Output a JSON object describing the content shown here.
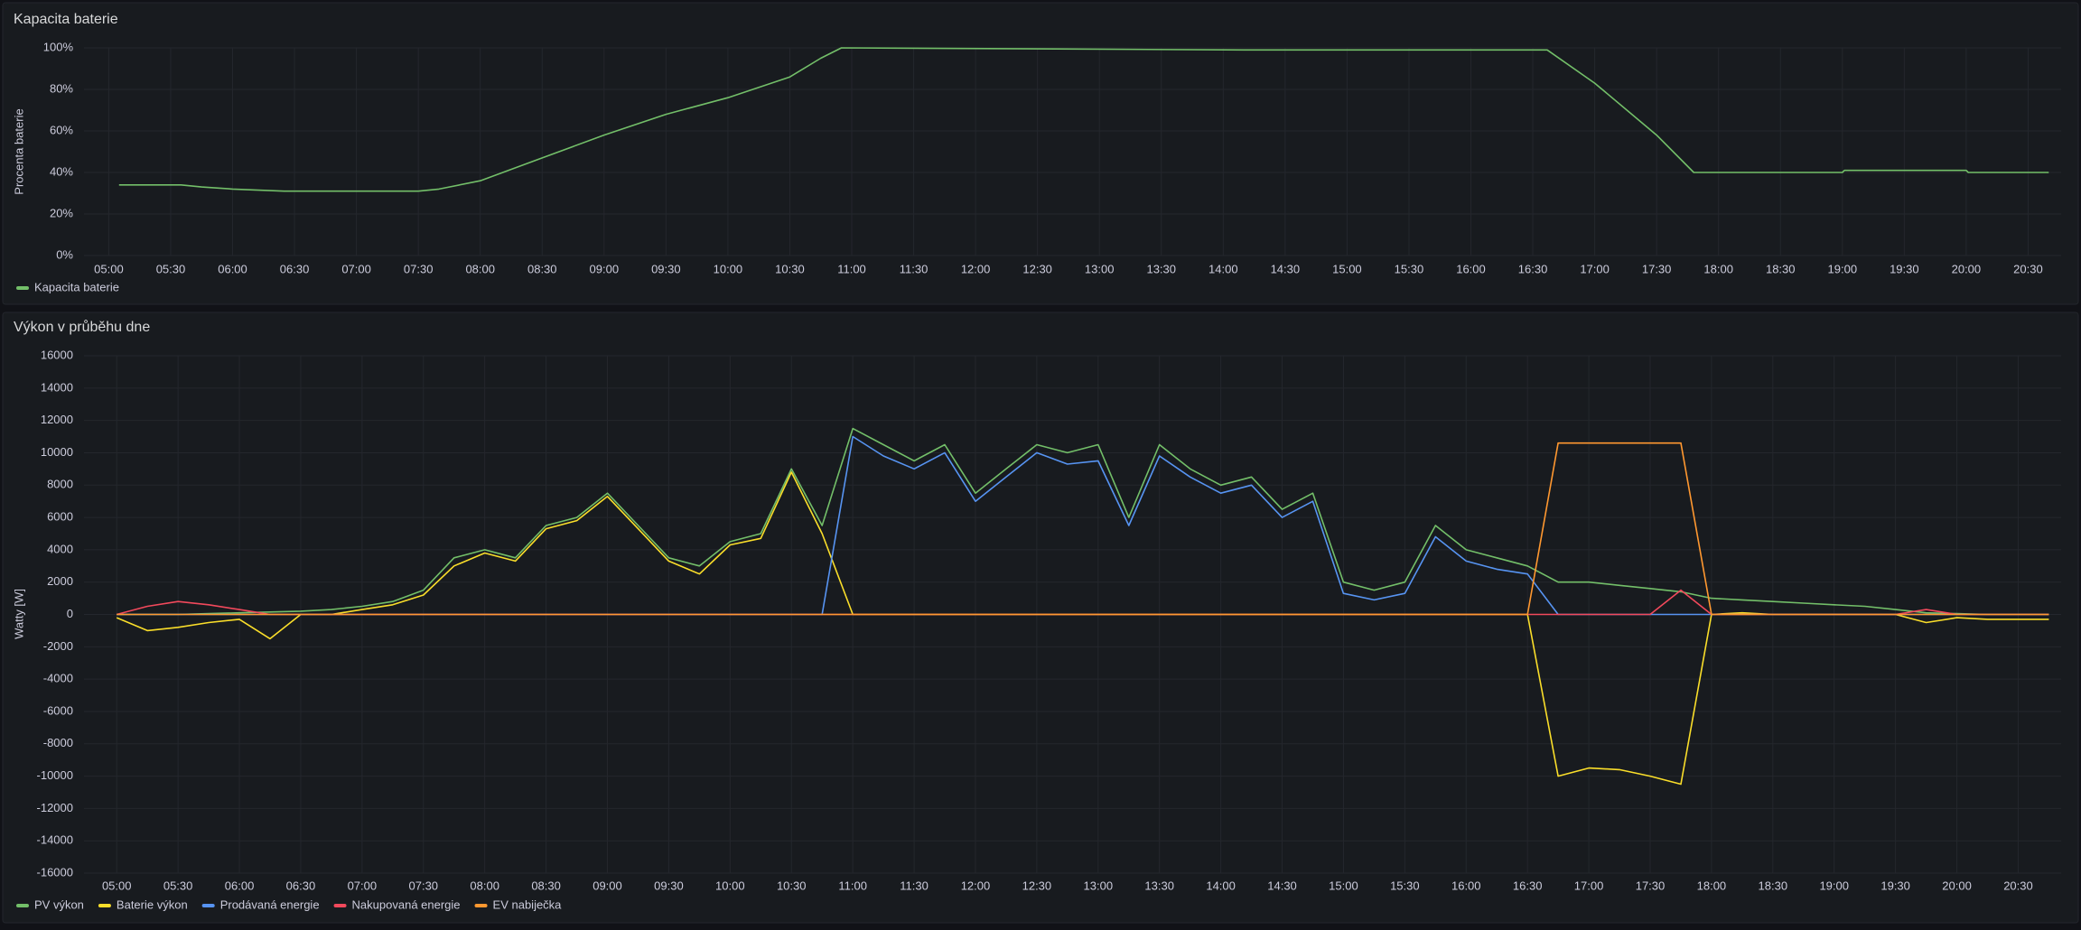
{
  "chart_data": [
    {
      "type": "line",
      "title": "Kapacita baterie",
      "y_label": "Procenta baterie",
      "x": [
        "05:05",
        "05:35",
        "05:45",
        "06:00",
        "06:25",
        "07:30",
        "07:40",
        "08:00",
        "08:30",
        "09:00",
        "09:30",
        "10:00",
        "10:30",
        "10:45",
        "10:55",
        "14:10",
        "16:37",
        "17:00",
        "17:30",
        "17:48",
        "19:00",
        "19:01",
        "20:00",
        "20:01",
        "20:40"
      ],
      "series": [
        {
          "name": "Kapacita baterie",
          "color": "#73bf69",
          "values": [
            34,
            34,
            33,
            32,
            31,
            31,
            32,
            36,
            47,
            58,
            68,
            76,
            86,
            95,
            100,
            99,
            99,
            83,
            58,
            40,
            40,
            41,
            41,
            40,
            40
          ]
        }
      ],
      "xlim": [
        "04:48",
        "20:46"
      ],
      "xticks": [
        "05:00",
        "05:30",
        "06:00",
        "06:30",
        "07:00",
        "07:30",
        "08:00",
        "08:30",
        "09:00",
        "09:30",
        "10:00",
        "10:30",
        "11:00",
        "11:30",
        "12:00",
        "12:30",
        "13:00",
        "13:30",
        "14:00",
        "14:30",
        "15:00",
        "15:30",
        "16:00",
        "16:30",
        "17:00",
        "17:30",
        "18:00",
        "18:30",
        "19:00",
        "19:30",
        "20:00",
        "20:30"
      ],
      "ylim": [
        0,
        100
      ],
      "yticks": [
        {
          "value": 0,
          "label": "0%"
        },
        {
          "value": 20,
          "label": "20%"
        },
        {
          "value": 40,
          "label": "40%"
        },
        {
          "value": 60,
          "label": "60%"
        },
        {
          "value": 80,
          "label": "80%"
        },
        {
          "value": 100,
          "label": "100%"
        }
      ],
      "grid": true,
      "legend": "bottom-left"
    },
    {
      "type": "line",
      "title": "Výkon v průběhu dne",
      "y_label": "Watty [W]",
      "x": [
        "05:00",
        "05:15",
        "05:30",
        "05:45",
        "06:00",
        "06:15",
        "06:30",
        "06:45",
        "07:00",
        "07:15",
        "07:30",
        "07:45",
        "08:00",
        "08:15",
        "08:30",
        "08:45",
        "09:00",
        "09:15",
        "09:30",
        "09:45",
        "10:00",
        "10:15",
        "10:30",
        "10:45",
        "11:00",
        "11:15",
        "11:30",
        "11:45",
        "12:00",
        "12:15",
        "12:30",
        "12:45",
        "13:00",
        "13:15",
        "13:30",
        "13:45",
        "14:00",
        "14:15",
        "14:30",
        "14:45",
        "15:00",
        "15:15",
        "15:30",
        "15:45",
        "16:00",
        "16:15",
        "16:30",
        "16:45",
        "17:00",
        "17:15",
        "17:30",
        "17:45",
        "18:00",
        "18:15",
        "18:30",
        "18:45",
        "19:00",
        "19:15",
        "19:30",
        "19:45",
        "20:00",
        "20:15",
        "20:30",
        "20:45"
      ],
      "series": [
        {
          "name": "PV výkon",
          "color": "#73bf69",
          "values": [
            0,
            0,
            0,
            50,
            100,
            150,
            200,
            300,
            500,
            800,
            1500,
            3500,
            4000,
            3500,
            5500,
            6000,
            7500,
            5500,
            3500,
            3000,
            4500,
            5000,
            9000,
            5500,
            11500,
            10500,
            9500,
            10500,
            7500,
            9000,
            10500,
            10000,
            10500,
            6000,
            10500,
            9000,
            8000,
            8500,
            6500,
            7500,
            2000,
            1500,
            2000,
            5500,
            4000,
            3500,
            3000,
            2000,
            2000,
            1800,
            1600,
            1400,
            1000,
            900,
            800,
            700,
            600,
            500,
            300,
            100,
            50,
            0,
            0,
            0
          ]
        },
        {
          "name": "Baterie výkon",
          "color": "#fade2a",
          "values": [
            -200,
            -1000,
            -800,
            -500,
            -300,
            -1500,
            0,
            0,
            300,
            600,
            1200,
            3000,
            3800,
            3300,
            5300,
            5800,
            7300,
            5300,
            3300,
            2500,
            4300,
            4700,
            8800,
            5000,
            0,
            0,
            0,
            0,
            0,
            0,
            0,
            0,
            0,
            0,
            0,
            0,
            0,
            0,
            0,
            0,
            0,
            0,
            0,
            0,
            0,
            0,
            0,
            -10000,
            -9500,
            -9600,
            -10000,
            -10500,
            0,
            100,
            0,
            0,
            0,
            0,
            0,
            -500,
            -200,
            -300,
            -300,
            -300
          ]
        },
        {
          "name": "Prodávaná energie",
          "color": "#5794f2",
          "values": [
            0,
            0,
            0,
            0,
            0,
            0,
            0,
            0,
            0,
            0,
            0,
            0,
            0,
            0,
            0,
            0,
            0,
            0,
            0,
            0,
            0,
            0,
            0,
            0,
            11000,
            9800,
            9000,
            10000,
            7000,
            8500,
            10000,
            9300,
            9500,
            5500,
            9800,
            8500,
            7500,
            8000,
            6000,
            7000,
            1300,
            900,
            1300,
            4800,
            3300,
            2800,
            2500,
            0,
            0,
            0,
            0,
            0,
            0,
            0,
            0,
            0,
            0,
            0,
            0,
            0,
            0,
            0,
            0,
            0
          ]
        },
        {
          "name": "Nakupovaná energie",
          "color": "#f2495c",
          "values": [
            0,
            500,
            800,
            600,
            300,
            0,
            0,
            0,
            0,
            0,
            0,
            0,
            0,
            0,
            0,
            0,
            0,
            0,
            0,
            0,
            0,
            0,
            0,
            0,
            0,
            0,
            0,
            0,
            0,
            0,
            0,
            0,
            0,
            0,
            0,
            0,
            0,
            0,
            0,
            0,
            0,
            0,
            0,
            0,
            0,
            0,
            0,
            0,
            0,
            0,
            0,
            1500,
            0,
            0,
            0,
            0,
            0,
            0,
            0,
            300,
            0,
            0,
            0,
            0
          ]
        },
        {
          "name": "EV nabiječka",
          "color": "#ff9830",
          "values": [
            0,
            0,
            0,
            0,
            0,
            0,
            0,
            0,
            0,
            0,
            0,
            0,
            0,
            0,
            0,
            0,
            0,
            0,
            0,
            0,
            0,
            0,
            0,
            0,
            0,
            0,
            0,
            0,
            0,
            0,
            0,
            0,
            0,
            0,
            0,
            0,
            0,
            0,
            0,
            0,
            0,
            0,
            0,
            0,
            0,
            0,
            0,
            10600,
            10600,
            10600,
            10600,
            10600,
            0,
            0,
            0,
            0,
            0,
            0,
            0,
            0,
            0,
            0,
            0,
            0
          ]
        }
      ],
      "xlim": [
        "04:44",
        "20:51"
      ],
      "xticks": [
        "05:00",
        "05:30",
        "06:00",
        "06:30",
        "07:00",
        "07:30",
        "08:00",
        "08:30",
        "09:00",
        "09:30",
        "10:00",
        "10:30",
        "11:00",
        "11:30",
        "12:00",
        "12:30",
        "13:00",
        "13:30",
        "14:00",
        "14:30",
        "15:00",
        "15:30",
        "16:00",
        "16:30",
        "17:00",
        "17:30",
        "18:00",
        "18:30",
        "19:00",
        "19:30",
        "20:00",
        "20:30"
      ],
      "ylim": [
        -16000,
        16000
      ],
      "yticks": [
        -16000,
        -14000,
        -12000,
        -10000,
        -8000,
        -6000,
        -4000,
        -2000,
        0,
        2000,
        4000,
        6000,
        8000,
        10000,
        12000,
        14000,
        16000
      ],
      "grid": true,
      "legend": "bottom-left"
    }
  ]
}
